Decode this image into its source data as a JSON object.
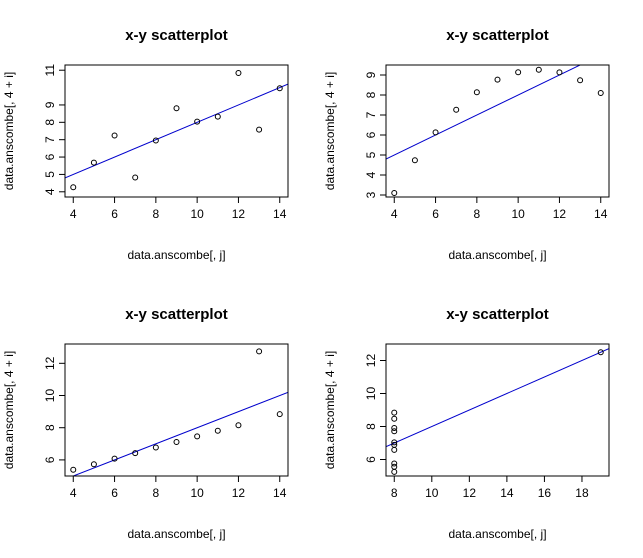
{
  "chart_data": [
    {
      "type": "scatter",
      "title": "x-y scatterplot",
      "xlabel": "data.anscombe[, j]",
      "ylabel": "data.anscombe[, 4 + i]",
      "xlim": [
        3.6,
        14.4
      ],
      "ylim": [
        3.7,
        11.3
      ],
      "xticks": [
        4,
        6,
        8,
        10,
        12,
        14
      ],
      "yticks": [
        4,
        5,
        6,
        7,
        8,
        9,
        11
      ],
      "points": {
        "x": [
          10,
          8,
          13,
          9,
          11,
          14,
          6,
          4,
          12,
          7,
          5
        ],
        "y": [
          8.04,
          6.95,
          7.58,
          8.81,
          8.33,
          9.96,
          7.24,
          4.26,
          10.84,
          4.82,
          5.68
        ]
      },
      "fit": {
        "intercept": 3.0,
        "slope": 0.5,
        "color": "#0000cc"
      },
      "marker_color": "#000000"
    },
    {
      "type": "scatter",
      "title": "x-y scatterplot",
      "xlabel": "data.anscombe[, j]",
      "ylabel": "data.anscombe[, 4 + i]",
      "xlim": [
        3.6,
        14.4
      ],
      "ylim": [
        2.9,
        9.5
      ],
      "xticks": [
        4,
        6,
        8,
        10,
        12,
        14
      ],
      "yticks": [
        3,
        4,
        5,
        6,
        7,
        8,
        9
      ],
      "points": {
        "x": [
          10,
          8,
          13,
          9,
          11,
          14,
          6,
          4,
          12,
          7,
          5
        ],
        "y": [
          9.14,
          8.14,
          8.74,
          8.77,
          9.26,
          8.1,
          6.13,
          3.1,
          9.13,
          7.26,
          4.74
        ]
      },
      "fit": {
        "intercept": 3.0,
        "slope": 0.5,
        "color": "#0000cc"
      },
      "marker_color": "#000000"
    },
    {
      "type": "scatter",
      "title": "x-y scatterplot",
      "xlabel": "data.anscombe[, j]",
      "ylabel": "data.anscombe[, 4 + i]",
      "xlim": [
        3.6,
        14.4
      ],
      "ylim": [
        5.0,
        13.2
      ],
      "xticks": [
        4,
        6,
        8,
        10,
        12,
        14
      ],
      "yticks": [
        6,
        8,
        10,
        12
      ],
      "points": {
        "x": [
          10,
          8,
          13,
          9,
          11,
          14,
          6,
          4,
          12,
          7,
          5
        ],
        "y": [
          7.46,
          6.77,
          12.74,
          7.11,
          7.81,
          8.84,
          6.08,
          5.39,
          8.15,
          6.42,
          5.73
        ]
      },
      "fit": {
        "intercept": 3.0,
        "slope": 0.5,
        "color": "#0000cc"
      },
      "marker_color": "#000000"
    },
    {
      "type": "scatter",
      "title": "x-y scatterplot",
      "xlabel": "data.anscombe[, j]",
      "ylabel": "data.anscombe[, 4 + i]",
      "xlim": [
        7.56,
        19.44
      ],
      "ylim": [
        5.0,
        13.0
      ],
      "xticks": [
        8,
        10,
        12,
        14,
        16,
        18
      ],
      "yticks": [
        6,
        8,
        10,
        12
      ],
      "points": {
        "x": [
          8,
          8,
          8,
          8,
          8,
          8,
          8,
          19,
          8,
          8,
          8
        ],
        "y": [
          6.58,
          5.76,
          7.71,
          8.84,
          8.47,
          7.04,
          5.25,
          12.5,
          5.56,
          7.91,
          6.89
        ]
      },
      "fit": {
        "intercept": 3.0,
        "slope": 0.5,
        "color": "#0000cc"
      },
      "marker_color": "#000000"
    }
  ]
}
